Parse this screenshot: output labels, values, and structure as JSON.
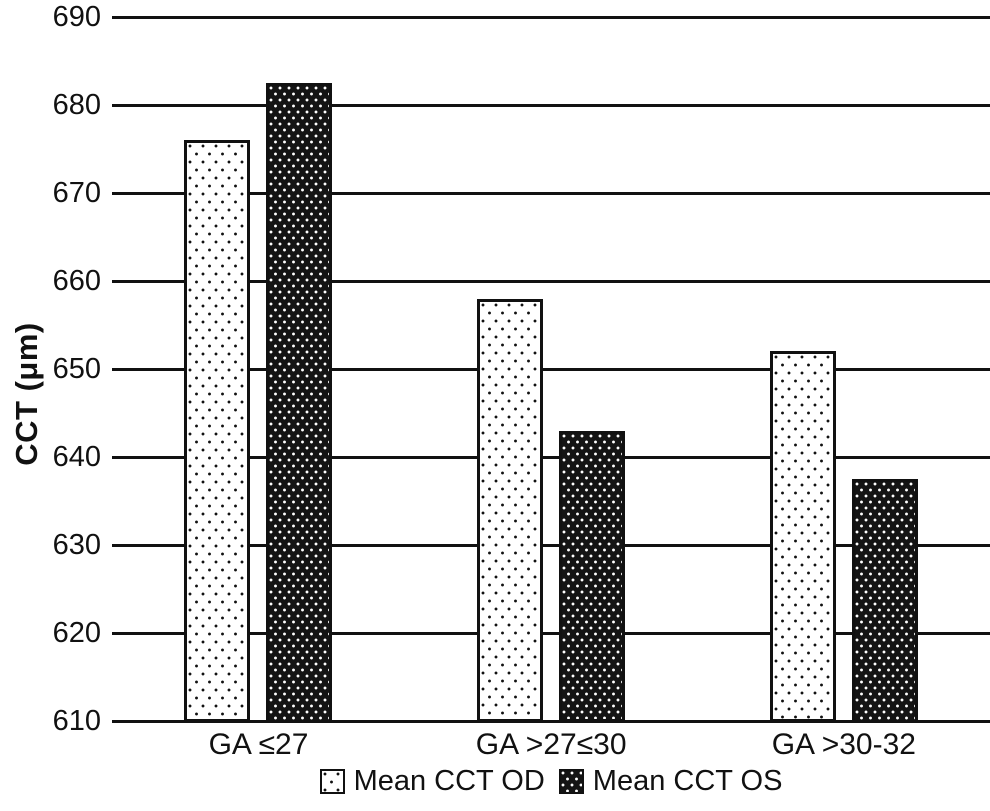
{
  "chart_data": {
    "type": "bar",
    "title": "",
    "xlabel": "",
    "ylabel": "CCT (μm)",
    "categories": [
      "GA ≤27",
      "GA >27≤30",
      "GA >30-32"
    ],
    "series": [
      {
        "name": "Mean CCT OD",
        "pattern": "black-dots-on-white",
        "values": [
          676,
          658,
          652
        ]
      },
      {
        "name": "Mean CCT OS",
        "pattern": "white-dots-on-black",
        "values": [
          682.5,
          643,
          637.5
        ]
      }
    ],
    "ylim": [
      610,
      690
    ],
    "ytick_step": 10,
    "ytick_labels": [
      "610",
      "620",
      "630",
      "640",
      "650",
      "660",
      "670",
      "680",
      "690"
    ],
    "grid": true,
    "gridline_color": "#111111",
    "legend_position": "bottom",
    "colors": {
      "foreground": "#111111",
      "background": "#ffffff"
    }
  }
}
